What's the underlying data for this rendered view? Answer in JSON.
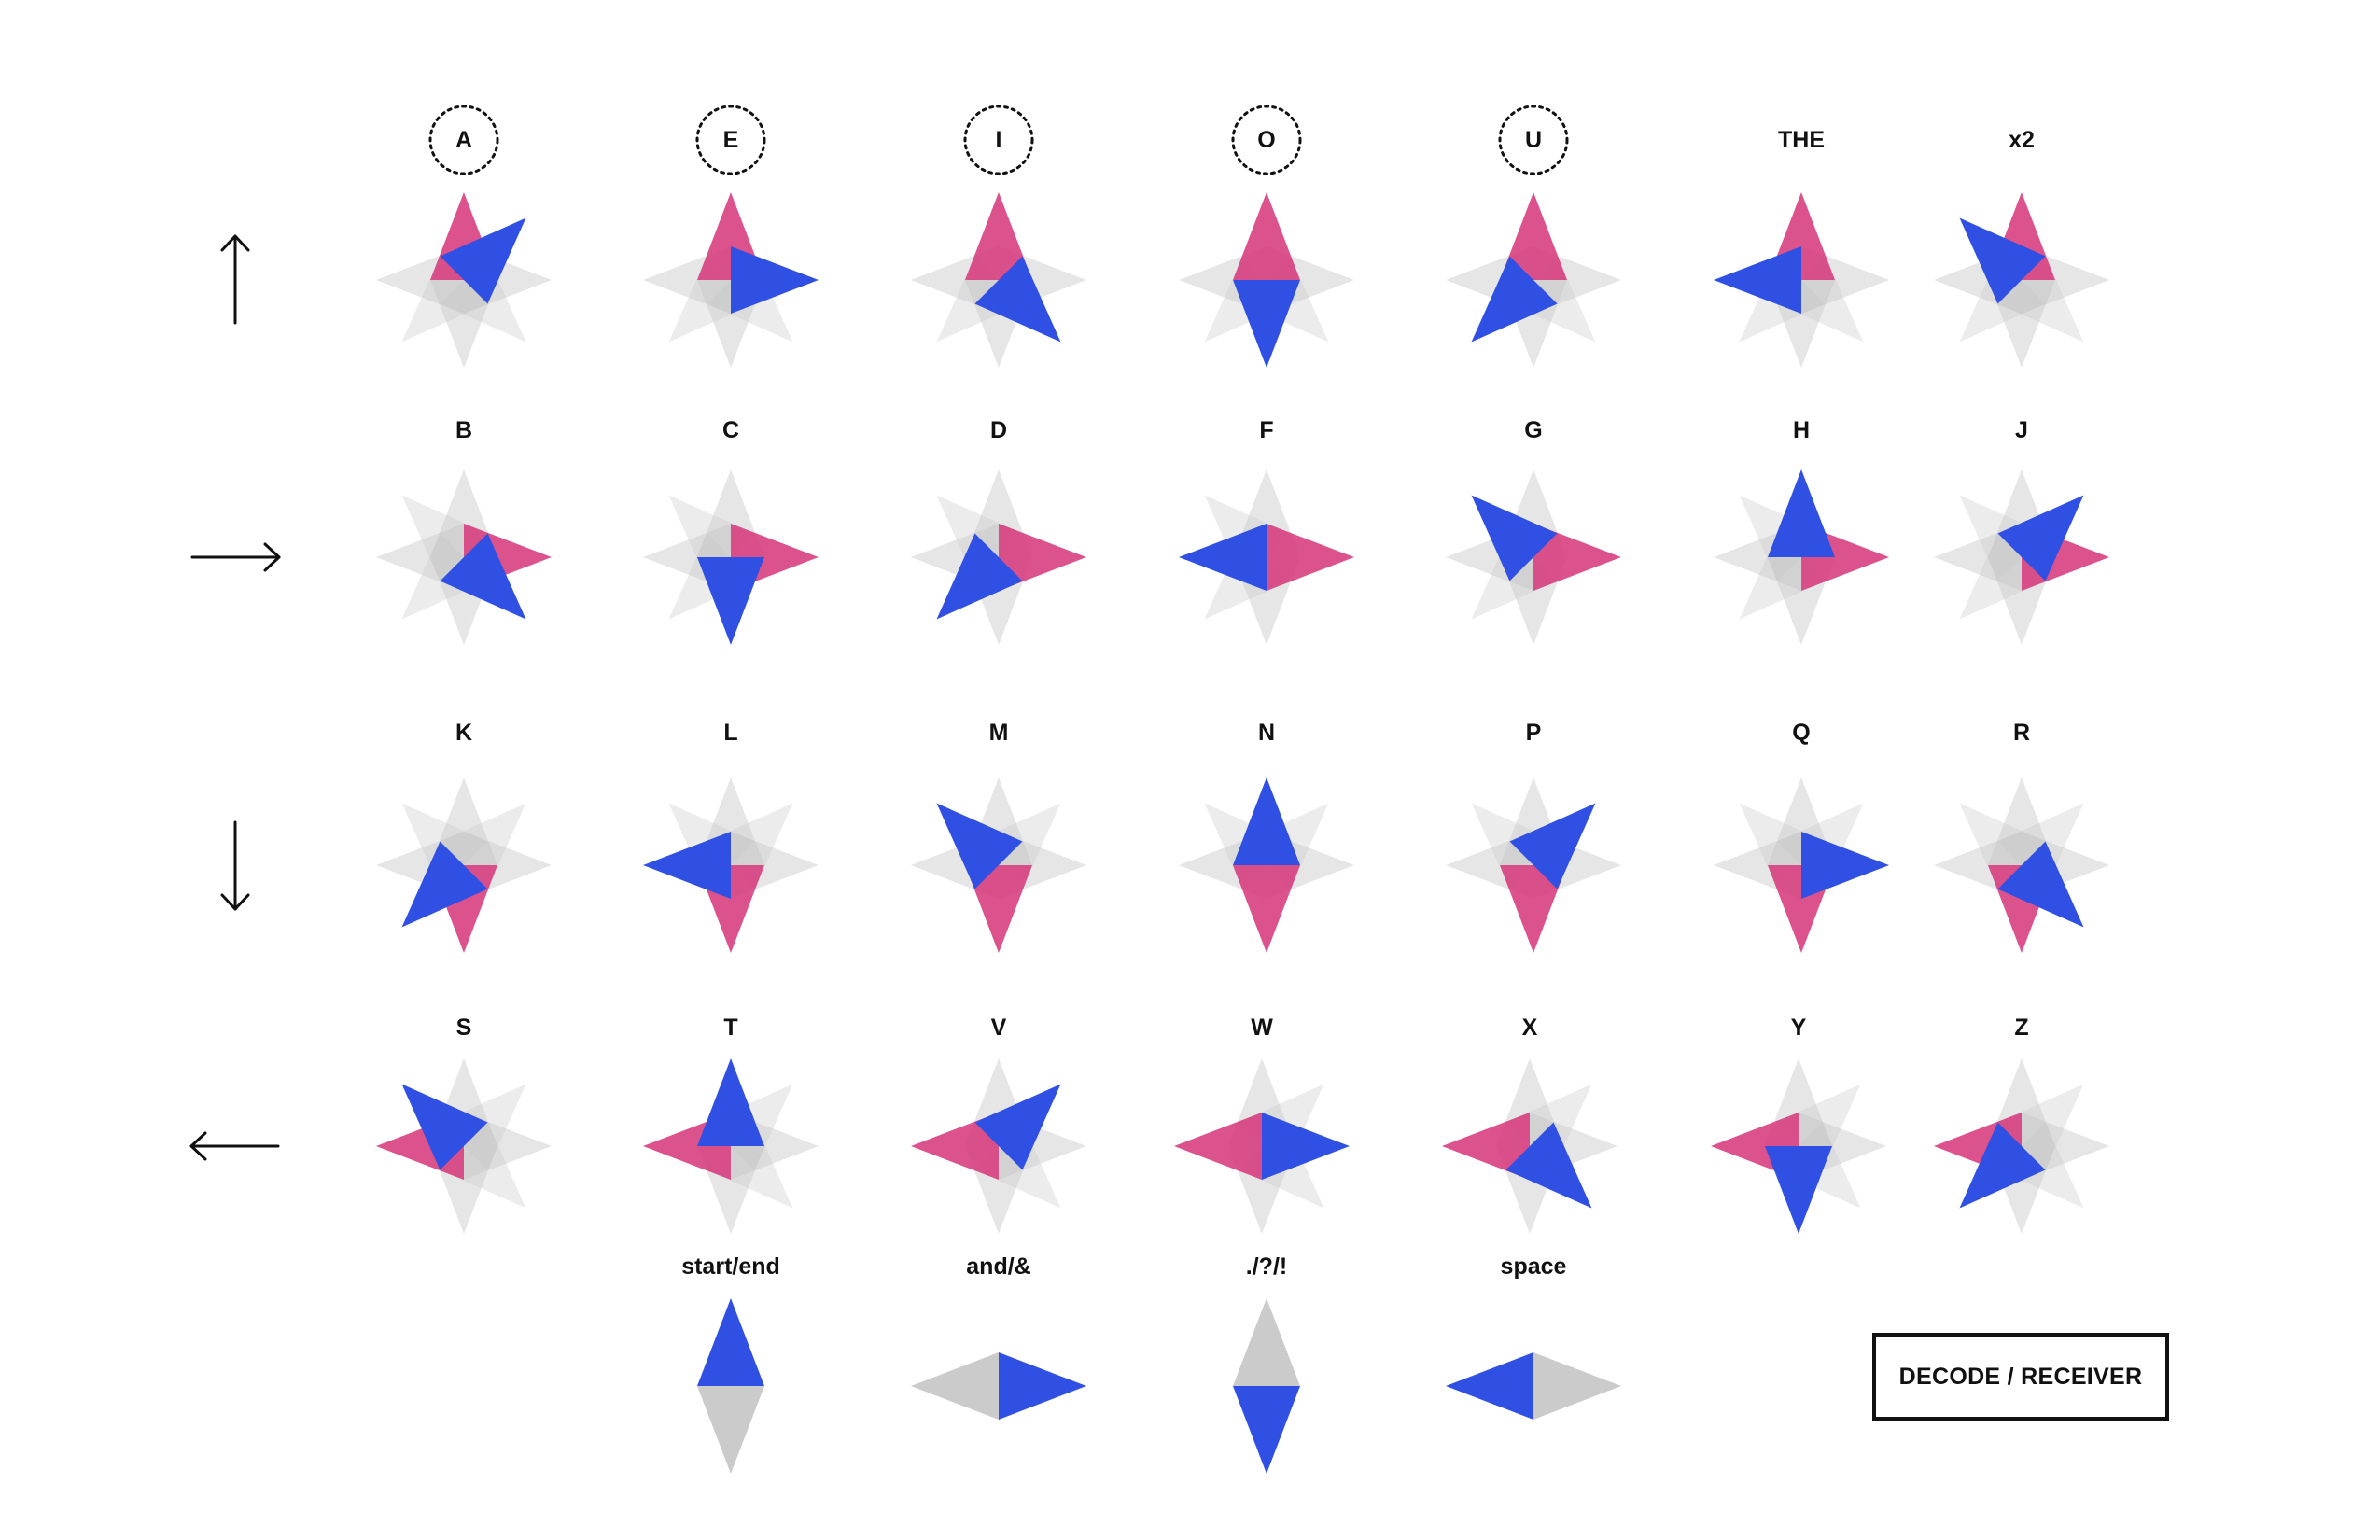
{
  "colors": {
    "vertical": "#d63a7d",
    "horizontal": "#3050e3",
    "ghost": "#c8c8c8",
    "text": "#111111"
  },
  "row_arrows": [
    {
      "direction": "up",
      "icon": "arrow-up-icon"
    },
    {
      "direction": "right",
      "icon": "arrow-right-icon"
    },
    {
      "direction": "down",
      "icon": "arrow-down-icon"
    },
    {
      "direction": "left",
      "icon": "arrow-left-icon"
    }
  ],
  "glyphs": [
    {
      "label": "A",
      "vowel": true,
      "row": 0,
      "vertical": "up",
      "pointer": "up-right"
    },
    {
      "label": "E",
      "vowel": true,
      "row": 0,
      "vertical": "up",
      "pointer": "right"
    },
    {
      "label": "I",
      "vowel": true,
      "row": 0,
      "vertical": "up",
      "pointer": "down-right"
    },
    {
      "label": "O",
      "vowel": true,
      "row": 0,
      "vertical": "up",
      "pointer": "down"
    },
    {
      "label": "U",
      "vowel": true,
      "row": 0,
      "vertical": "up",
      "pointer": "down-left"
    },
    {
      "label": "THE",
      "vowel": false,
      "row": 0,
      "vertical": "up",
      "pointer": "left"
    },
    {
      "label": "x2",
      "vowel": false,
      "row": 0,
      "vertical": "up",
      "pointer": "up-left"
    },
    {
      "label": "B",
      "vowel": false,
      "row": 1,
      "vertical": "right",
      "pointer": "down-right"
    },
    {
      "label": "C",
      "vowel": false,
      "row": 1,
      "vertical": "right",
      "pointer": "down"
    },
    {
      "label": "D",
      "vowel": false,
      "row": 1,
      "vertical": "right",
      "pointer": "down-left"
    },
    {
      "label": "F",
      "vowel": false,
      "row": 1,
      "vertical": "right",
      "pointer": "left"
    },
    {
      "label": "G",
      "vowel": false,
      "row": 1,
      "vertical": "right",
      "pointer": "up-left"
    },
    {
      "label": "H",
      "vowel": false,
      "row": 1,
      "vertical": "right",
      "pointer": "up"
    },
    {
      "label": "J",
      "vowel": false,
      "row": 1,
      "vertical": "right",
      "pointer": "up-right"
    },
    {
      "label": "K",
      "vowel": false,
      "row": 2,
      "vertical": "down",
      "pointer": "down-left"
    },
    {
      "label": "L",
      "vowel": false,
      "row": 2,
      "vertical": "down",
      "pointer": "left"
    },
    {
      "label": "M",
      "vowel": false,
      "row": 2,
      "vertical": "down",
      "pointer": "up-left"
    },
    {
      "label": "N",
      "vowel": false,
      "row": 2,
      "vertical": "down",
      "pointer": "up"
    },
    {
      "label": "P",
      "vowel": false,
      "row": 2,
      "vertical": "down",
      "pointer": "up-right"
    },
    {
      "label": "Q",
      "vowel": false,
      "row": 2,
      "vertical": "down",
      "pointer": "right"
    },
    {
      "label": "R",
      "vowel": false,
      "row": 2,
      "vertical": "down",
      "pointer": "down-right"
    },
    {
      "label": "S",
      "vowel": false,
      "row": 3,
      "vertical": "left",
      "pointer": "up-left"
    },
    {
      "label": "T",
      "vowel": false,
      "row": 3,
      "vertical": "left",
      "pointer": "up"
    },
    {
      "label": "V",
      "vowel": false,
      "row": 3,
      "vertical": "left",
      "pointer": "up-right"
    },
    {
      "label": "W",
      "vowel": false,
      "row": 3,
      "vertical": "left",
      "pointer": "right"
    },
    {
      "label": "X",
      "vowel": false,
      "row": 3,
      "vertical": "left",
      "pointer": "down-right"
    },
    {
      "label": "Y",
      "vowel": false,
      "row": 3,
      "vertical": "left",
      "pointer": "down"
    },
    {
      "label": "Z",
      "vowel": false,
      "row": 3,
      "vertical": "left",
      "pointer": "down-left"
    }
  ],
  "specials": [
    {
      "label": "start/end",
      "shown": "up",
      "ghost": "down"
    },
    {
      "label": "and/&",
      "shown": "right",
      "ghost": "left"
    },
    {
      "label": "./?/!",
      "shown": "down",
      "ghost": "up"
    },
    {
      "label": "space",
      "shown": "left",
      "ghost": "right"
    }
  ],
  "decode_button_label": "DECODE / RECEIVER"
}
